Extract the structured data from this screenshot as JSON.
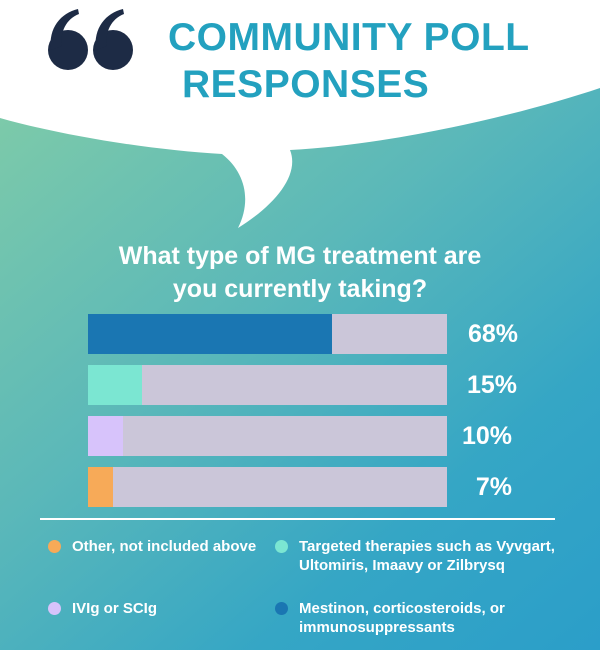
{
  "header": {
    "title_line1": "COMMUNITY POLL",
    "title_line2": "RESPONSES"
  },
  "question": {
    "line1": "What type of MG treatment are",
    "line2": "you currently taking?"
  },
  "colors": {
    "track": "#cbc6d9",
    "mestinon": "#1a76b2",
    "targeted": "#7be6d2",
    "ivig": "#d7c3fb",
    "other": "#f7aa58",
    "title": "#23a1bf",
    "quote": "#1d2b45"
  },
  "chart_data": {
    "type": "bar",
    "orientation": "horizontal",
    "title": "What type of MG treatment are you currently taking?",
    "categories": [
      "Mestinon, corticosteroids, or immunosuppressants",
      "Targeted therapies such as Vyvgart, Ultomiris, Imaavy or Zilbrysq",
      "IVIg or SCIg",
      "Other, not included above"
    ],
    "values": [
      68,
      15,
      10,
      7
    ],
    "labels": [
      "68%",
      "15%",
      "10%",
      "7%"
    ],
    "series_colors": [
      "#1a76b2",
      "#7be6d2",
      "#d7c3fb",
      "#f7aa58"
    ],
    "xlim": [
      0,
      100
    ],
    "unit": "%",
    "grid": false,
    "legend_position": "bottom"
  },
  "legend": [
    {
      "label": "Other, not included above",
      "color": "#f7aa58"
    },
    {
      "label": "Targeted therapies such as Vyvgart, Ultomiris, Imaavy or Zilbrysq",
      "color": "#7be6d2"
    },
    {
      "label": "IVIg or SCIg",
      "color": "#d7c3fb"
    },
    {
      "label": "Mestinon, corticosteroids, or immunosuppressants",
      "color": "#1a76b2"
    }
  ]
}
